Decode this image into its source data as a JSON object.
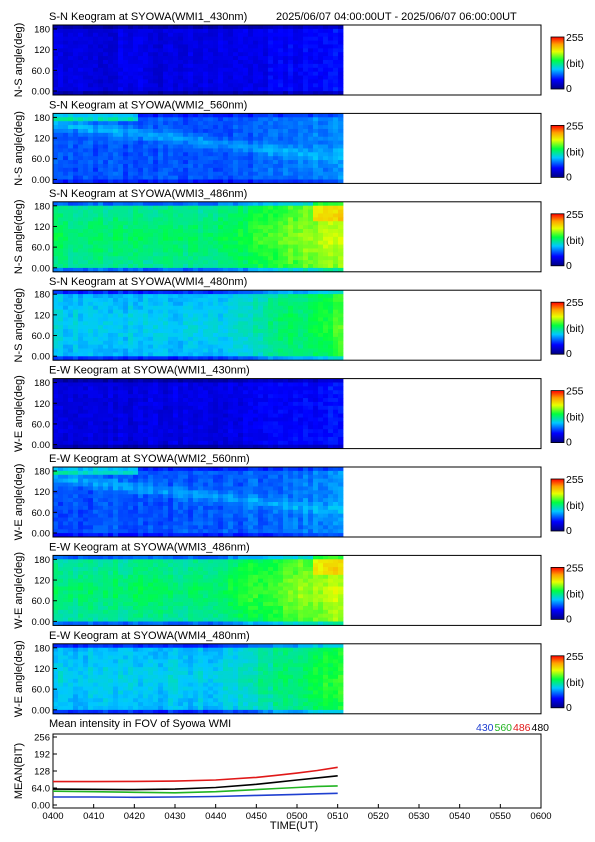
{
  "header": {
    "time_range": "2025/06/07 04:00:00UT - 2025/06/07 06:00:00UT"
  },
  "colorbar": {
    "max_label": "255",
    "unit_label": "(bit)",
    "min_label": "0"
  },
  "panels": [
    {
      "title": "S-N Keogram at SYOWA(WMI1_430nm)",
      "ylabel": "N-S angle(deg)",
      "yticks": [
        "180",
        "120",
        "60.0",
        "0.00"
      ],
      "colormap_intensity": "low",
      "variant": "dark"
    },
    {
      "title": "S-N Keogram at SYOWA(WMI2_560nm)",
      "ylabel": "N-S angle(deg)",
      "yticks": [
        "180",
        "120",
        "60.0",
        "0.00"
      ],
      "colormap_intensity": "medium-low",
      "variant": "arc"
    },
    {
      "title": "S-N Keogram at SYOWA(WMI3_486nm)",
      "ylabel": "N-S angle(deg)",
      "yticks": [
        "180",
        "120",
        "60.0",
        "0.00"
      ],
      "colormap_intensity": "high",
      "variant": "bright"
    },
    {
      "title": "S-N Keogram at SYOWA(WMI4_480nm)",
      "ylabel": "N-S angle(deg)",
      "yticks": [
        "180",
        "120",
        "60.0",
        "0.00"
      ],
      "colormap_intensity": "medium",
      "variant": "mid"
    },
    {
      "title": "E-W Keogram at SYOWA(WMI1_430nm)",
      "ylabel": "W-E angle(deg)",
      "yticks": [
        "180",
        "120",
        "60.0",
        "0.00"
      ],
      "colormap_intensity": "low",
      "variant": "dark"
    },
    {
      "title": "E-W Keogram at SYOWA(WMI2_560nm)",
      "ylabel": "W-E angle(deg)",
      "yticks": [
        "180",
        "120",
        "60.0",
        "0.00"
      ],
      "colormap_intensity": "medium-low",
      "variant": "arc"
    },
    {
      "title": "E-W Keogram at SYOWA(WMI3_486nm)",
      "ylabel": "W-E angle(deg)",
      "yticks": [
        "180",
        "120",
        "60.0",
        "0.00"
      ],
      "colormap_intensity": "high",
      "variant": "bright"
    },
    {
      "title": "E-W Keogram at SYOWA(WMI4_480nm)",
      "ylabel": "W-E angle(deg)",
      "yticks": [
        "180",
        "120",
        "60.0",
        "0.00"
      ],
      "colormap_intensity": "medium",
      "variant": "mid"
    }
  ],
  "chart_data": {
    "type": "line",
    "title": "Mean intensity in FOV of Syowa WMI",
    "xlabel": "TIME(UT)",
    "ylabel": "MEAN(BIT)",
    "xticks": [
      "0400",
      "0410",
      "0420",
      "0430",
      "0440",
      "0450",
      "0500",
      "0510",
      "0520",
      "0530",
      "0540",
      "0550",
      "0600"
    ],
    "yticks": [
      "256",
      "192",
      "128",
      "64.0",
      "0.00"
    ],
    "ylim": [
      0,
      256
    ],
    "xlim_minutes": [
      0,
      120
    ],
    "x_minutes": [
      0,
      10,
      20,
      30,
      40,
      50,
      55,
      60,
      65,
      70
    ],
    "series": [
      {
        "name": "430",
        "color": "#1f3fd0",
        "values": [
          30,
          30,
          29,
          30,
          32,
          36,
          38,
          40,
          42,
          44
        ]
      },
      {
        "name": "560",
        "color": "#22b422",
        "values": [
          52,
          50,
          48,
          46,
          50,
          58,
          62,
          66,
          70,
          72
        ]
      },
      {
        "name": "486",
        "color": "#e01818",
        "values": [
          88,
          88,
          89,
          90,
          94,
          104,
          112,
          120,
          130,
          142
        ]
      },
      {
        "name": "480",
        "color": "#000000",
        "values": [
          60,
          59,
          58,
          60,
          66,
          78,
          86,
          94,
          102,
          110
        ]
      }
    ]
  }
}
